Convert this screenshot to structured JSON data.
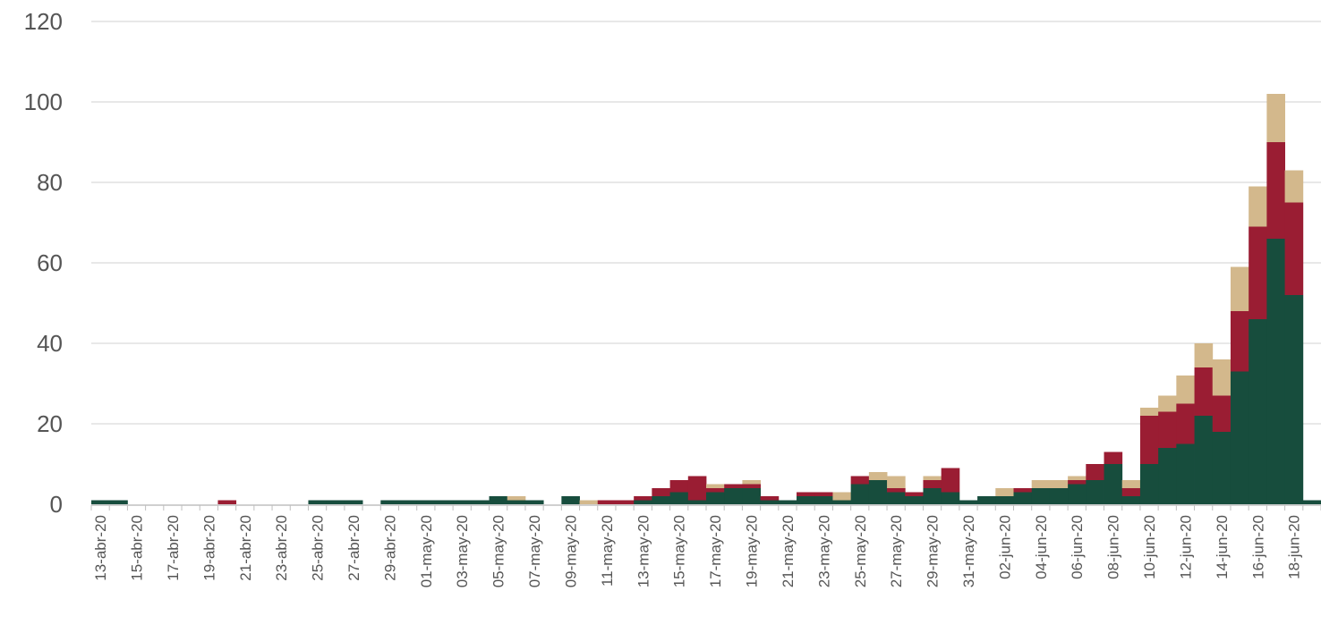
{
  "chart_data": {
    "type": "bar",
    "stacked": true,
    "title": "",
    "xlabel": "",
    "ylabel": "",
    "ylim": [
      0,
      120
    ],
    "yticks": [
      0,
      20,
      40,
      60,
      80,
      100,
      120
    ],
    "grid": true,
    "legend": "none",
    "colors": [
      "#174d3d",
      "#9a1d33",
      "#d3b88c"
    ],
    "categories": [
      "13-abr-20",
      "14-abr-20",
      "15-abr-20",
      "16-abr-20",
      "17-abr-20",
      "18-abr-20",
      "19-abr-20",
      "20-abr-20",
      "21-abr-20",
      "22-abr-20",
      "23-abr-20",
      "24-abr-20",
      "25-abr-20",
      "26-abr-20",
      "27-abr-20",
      "28-abr-20",
      "29-abr-20",
      "30-abr-20",
      "01-may-20",
      "02-may-20",
      "03-may-20",
      "04-may-20",
      "05-may-20",
      "06-may-20",
      "07-may-20",
      "08-may-20",
      "09-may-20",
      "10-may-20",
      "11-may-20",
      "12-may-20",
      "13-may-20",
      "14-may-20",
      "15-may-20",
      "16-may-20",
      "17-may-20",
      "18-may-20",
      "19-may-20",
      "20-may-20",
      "21-may-20",
      "22-may-20",
      "23-may-20",
      "24-may-20",
      "25-may-20",
      "26-may-20",
      "27-may-20",
      "28-may-20",
      "29-may-20",
      "30-may-20",
      "31-may-20",
      "01-jun-20",
      "02-jun-20",
      "03-jun-20",
      "04-jun-20",
      "05-jun-20",
      "06-jun-20",
      "07-jun-20",
      "08-jun-20",
      "09-jun-20",
      "10-jun-20",
      "11-jun-20",
      "12-jun-20",
      "13-jun-20",
      "14-jun-20",
      "15-jun-20",
      "16-jun-20",
      "17-jun-20",
      "18-jun-20",
      "19-jun-20"
    ],
    "tick_labels": [
      "13-abr-20",
      "15-abr-20",
      "17-abr-20",
      "19-abr-20",
      "21-abr-20",
      "23-abr-20",
      "25-abr-20",
      "27-abr-20",
      "29-abr-20",
      "01-may-20",
      "03-may-20",
      "05-may-20",
      "07-may-20",
      "09-may-20",
      "11-may-20",
      "13-may-20",
      "15-may-20",
      "17-may-20",
      "19-may-20",
      "21-may-20",
      "23-may-20",
      "25-may-20",
      "27-may-20",
      "29-may-20",
      "31-may-20",
      "02-jun-20",
      "04-jun-20",
      "06-jun-20",
      "08-jun-20",
      "10-jun-20",
      "12-jun-20",
      "14-jun-20",
      "16-jun-20",
      "18-jun-20"
    ],
    "series": [
      {
        "values": [
          1,
          1,
          0,
          0,
          0,
          0,
          0,
          0,
          0,
          0,
          0,
          0,
          1,
          1,
          1,
          0,
          1,
          1,
          1,
          1,
          1,
          1,
          2,
          1,
          1,
          0,
          2,
          0,
          0,
          0,
          1,
          2,
          3,
          1,
          3,
          4,
          4,
          1,
          1,
          2,
          2,
          1,
          5,
          6,
          3,
          2,
          4,
          3,
          1,
          2,
          2,
          3,
          4,
          4,
          5,
          6,
          10,
          2,
          10,
          14,
          15,
          22,
          18,
          33,
          46,
          66,
          52,
          1
        ]
      },
      {
        "values": [
          0,
          0,
          0,
          0,
          0,
          0,
          0,
          1,
          0,
          0,
          0,
          0,
          0,
          0,
          0,
          0,
          0,
          0,
          0,
          0,
          0,
          0,
          0,
          0,
          0,
          0,
          0,
          0,
          1,
          1,
          1,
          2,
          3,
          6,
          1,
          1,
          1,
          1,
          0,
          1,
          1,
          0,
          2,
          0,
          1,
          1,
          2,
          6,
          0,
          0,
          0,
          1,
          0,
          0,
          1,
          4,
          3,
          2,
          12,
          9,
          10,
          12,
          9,
          15,
          23,
          24,
          23,
          0
        ]
      },
      {
        "values": [
          0,
          0,
          0,
          0,
          0,
          0,
          0,
          0,
          0,
          0,
          0,
          0,
          0,
          0,
          0,
          0,
          0,
          0,
          0,
          0,
          0,
          0,
          0,
          1,
          0,
          0,
          0,
          1,
          0,
          0,
          0,
          0,
          0,
          0,
          1,
          0,
          1,
          0,
          0,
          0,
          0,
          2,
          0,
          2,
          3,
          0,
          1,
          0,
          0,
          0,
          2,
          0,
          2,
          2,
          1,
          0,
          0,
          2,
          2,
          4,
          7,
          6,
          9,
          11,
          10,
          12,
          8,
          0
        ]
      }
    ]
  }
}
